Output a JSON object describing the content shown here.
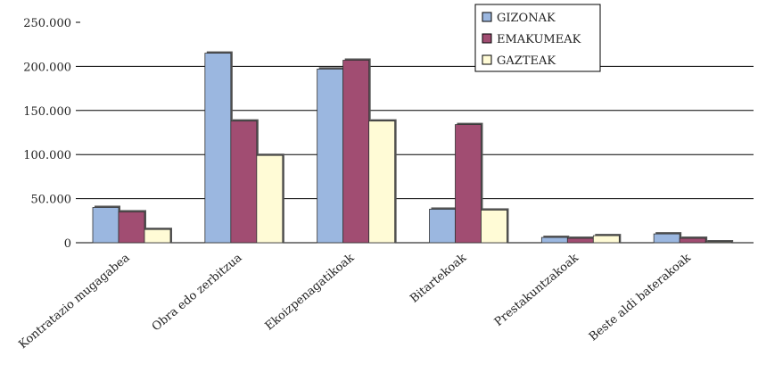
{
  "chart_data": {
    "type": "bar",
    "categories": [
      "Kontratazio mugagabea",
      "Obra edo zerbitzua",
      "Ekoizpenagatikoak",
      "Bitartekoak",
      "Prestakuntzakoak",
      "Beste aldi baterakoak"
    ],
    "series": [
      {
        "name": "GIZONAK",
        "color": "#9bb7e0",
        "values": [
          40000,
          215000,
          197000,
          38000,
          6000,
          10000
        ]
      },
      {
        "name": "EMAKUMEAK",
        "color": "#a14d72",
        "values": [
          35000,
          138000,
          207000,
          134000,
          5000,
          5000
        ]
      },
      {
        "name": "GAZTEAK",
        "color": "#fffbd6",
        "values": [
          15000,
          99000,
          138000,
          37000,
          8000,
          1000
        ]
      }
    ],
    "ylim": [
      0,
      250000
    ],
    "yticks": [
      0,
      50000,
      100000,
      150000,
      200000,
      250000
    ],
    "ytick_labels": [
      "0",
      "50.000",
      "100.000",
      "150.000",
      "200.000",
      "250.000"
    ],
    "grid": true,
    "legend_position": "top-right",
    "title": "",
    "xlabel": "",
    "ylabel": ""
  }
}
